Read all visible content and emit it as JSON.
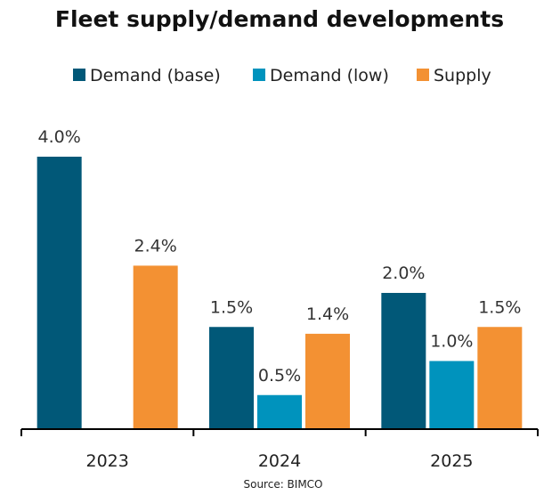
{
  "chart_data": {
    "type": "bar",
    "title": "Fleet supply/demand developments",
    "categories": [
      "2023",
      "2024",
      "2025"
    ],
    "series": [
      {
        "name": "Demand (base)",
        "color": "#015878",
        "values": [
          4.0,
          1.5,
          2.0
        ],
        "labels": [
          "4.0%",
          "1.5%",
          "2.0%"
        ]
      },
      {
        "name": "Demand (low)",
        "color": "#0093BD",
        "values": [
          null,
          0.5,
          1.0
        ],
        "labels": [
          null,
          "0.5%",
          "1.0%"
        ]
      },
      {
        "name": "Supply",
        "color": "#F39133",
        "values": [
          2.4,
          1.4,
          1.5
        ],
        "labels": [
          "2.4%",
          "1.4%",
          "1.5%"
        ]
      }
    ],
    "xlabel": "",
    "ylabel": "",
    "ylim": [
      0,
      4.0
    ],
    "value_unit": "%",
    "grid": false,
    "y_axis_visible": false,
    "legend_position": "top",
    "source": "Source: BIMCO"
  }
}
